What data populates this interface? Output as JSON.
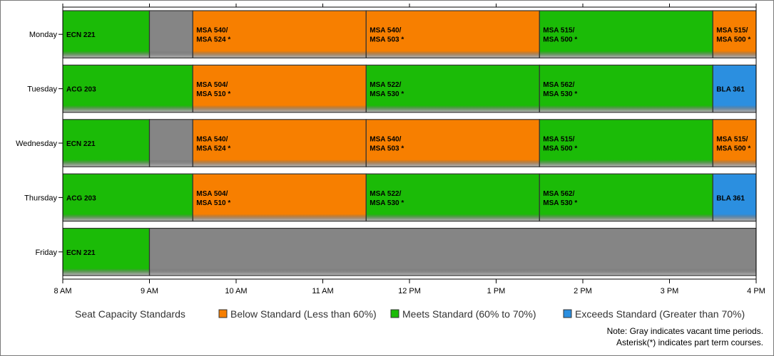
{
  "chart_data": {
    "type": "bar",
    "orientation": "horizontal-timeline",
    "x_ticks": [
      "8 AM",
      "9 AM",
      "10 AM",
      "11 AM",
      "12 PM",
      "1 PM",
      "2 PM",
      "3 PM",
      "4 PM"
    ],
    "xlim": [
      8,
      16
    ],
    "categories": [
      "Monday",
      "Tuesday",
      "Wednesday",
      "Thursday",
      "Friday"
    ],
    "status_colors": {
      "below": "#f77f00",
      "meets": "#1bbb07",
      "exceeds": "#2b8fe0",
      "vacant": "#858585"
    },
    "rows": [
      {
        "day": "Monday",
        "segments": [
          {
            "start": 8,
            "end": 9,
            "status": "meets",
            "lines": [
              "ECN 221"
            ]
          },
          {
            "start": 9,
            "end": 9.5,
            "status": "vacant",
            "lines": []
          },
          {
            "start": 9.5,
            "end": 11.5,
            "status": "below",
            "lines": [
              "MSA 540/",
              "MSA 524 *"
            ]
          },
          {
            "start": 11.5,
            "end": 13.5,
            "status": "below",
            "lines": [
              "MSA 540/",
              "MSA 503 *"
            ]
          },
          {
            "start": 13.5,
            "end": 15.5,
            "status": "meets",
            "lines": [
              "MSA 515/",
              "MSA 500 *"
            ]
          },
          {
            "start": 15.5,
            "end": 16,
            "status": "below",
            "lines": [
              "MSA 515/",
              "MSA 500 *"
            ]
          }
        ]
      },
      {
        "day": "Tuesday",
        "segments": [
          {
            "start": 8,
            "end": 9.5,
            "status": "meets",
            "lines": [
              "ACG 203"
            ]
          },
          {
            "start": 9.5,
            "end": 11.5,
            "status": "below",
            "lines": [
              "MSA 504/",
              "MSA 510 *"
            ]
          },
          {
            "start": 11.5,
            "end": 13.5,
            "status": "meets",
            "lines": [
              "MSA 522/",
              "MSA 530 *"
            ]
          },
          {
            "start": 13.5,
            "end": 15.5,
            "status": "meets",
            "lines": [
              "MSA 562/",
              "MSA 530 *"
            ]
          },
          {
            "start": 15.5,
            "end": 16,
            "status": "exceeds",
            "lines": [
              "BLA 361"
            ]
          }
        ]
      },
      {
        "day": "Wednesday",
        "segments": [
          {
            "start": 8,
            "end": 9,
            "status": "meets",
            "lines": [
              "ECN 221"
            ]
          },
          {
            "start": 9,
            "end": 9.5,
            "status": "vacant",
            "lines": []
          },
          {
            "start": 9.5,
            "end": 11.5,
            "status": "below",
            "lines": [
              "MSA 540/",
              "MSA 524 *"
            ]
          },
          {
            "start": 11.5,
            "end": 13.5,
            "status": "below",
            "lines": [
              "MSA 540/",
              "MSA 503 *"
            ]
          },
          {
            "start": 13.5,
            "end": 15.5,
            "status": "meets",
            "lines": [
              "MSA 515/",
              "MSA 500 *"
            ]
          },
          {
            "start": 15.5,
            "end": 16,
            "status": "below",
            "lines": [
              "MSA 515/",
              "MSA 500 *"
            ]
          }
        ]
      },
      {
        "day": "Thursday",
        "segments": [
          {
            "start": 8,
            "end": 9.5,
            "status": "meets",
            "lines": [
              "ACG 203"
            ]
          },
          {
            "start": 9.5,
            "end": 11.5,
            "status": "below",
            "lines": [
              "MSA 504/",
              "MSA 510 *"
            ]
          },
          {
            "start": 11.5,
            "end": 13.5,
            "status": "meets",
            "lines": [
              "MSA 522/",
              "MSA 530 *"
            ]
          },
          {
            "start": 13.5,
            "end": 15.5,
            "status": "meets",
            "lines": [
              "MSA 562/",
              "MSA 530 *"
            ]
          },
          {
            "start": 15.5,
            "end": 16,
            "status": "exceeds",
            "lines": [
              "BLA 361"
            ]
          }
        ]
      },
      {
        "day": "Friday",
        "segments": [
          {
            "start": 8,
            "end": 9,
            "status": "meets",
            "lines": [
              "ECN 221"
            ]
          },
          {
            "start": 9,
            "end": 16,
            "status": "vacant",
            "lines": []
          }
        ]
      }
    ],
    "legend": {
      "title": "Seat Capacity Standards",
      "placement": "bottom",
      "items": [
        {
          "label": "Below Standard (Less than 60%)",
          "status": "below"
        },
        {
          "label": "Meets Standard (60% to 70%)",
          "status": "meets"
        },
        {
          "label": "Exceeds Standard (Greater than 70%)",
          "status": "exceeds"
        }
      ]
    },
    "notes": [
      "Note: Gray indicates vacant time periods.",
      "Asterisk(*) indicates part term courses."
    ]
  }
}
